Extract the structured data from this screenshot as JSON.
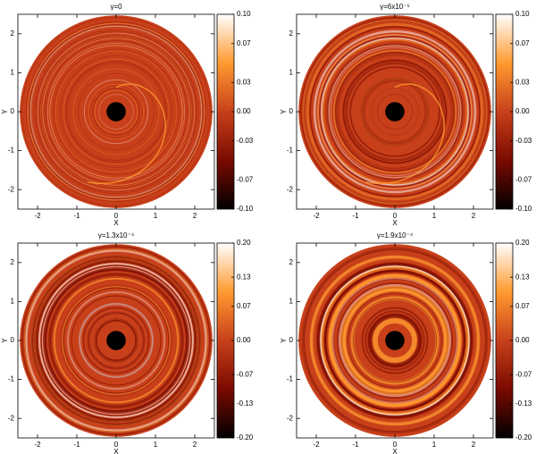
{
  "chart_data": [
    {
      "type": "heatmap",
      "title": "γ=0",
      "xlabel": "X",
      "ylabel": "Y",
      "xlim": [
        -2.5,
        2.5
      ],
      "ylim": [
        -2.5,
        2.5
      ],
      "xticks": [
        -2,
        -1,
        0,
        1,
        2
      ],
      "yticks": [
        -2,
        -1,
        0,
        1,
        2
      ],
      "colorbar_lim": [
        -0.1,
        0.1
      ],
      "colorbar_ticks": [
        {
          "value": 0.1,
          "label": "0.10"
        },
        0.07,
        0.03,
        {
          "value": 0,
          "label": "0.00"
        },
        -0.03,
        -0.07,
        {
          "value": -0.1,
          "label": "-0.10"
        }
      ],
      "colormap": [
        "#000000",
        "#7a0a00",
        "#c8401a",
        "#ff9a30",
        "#ffffff"
      ]
    },
    {
      "type": "heatmap",
      "title": "γ=6x10⁻⁵",
      "xlabel": "X",
      "ylabel": "Y",
      "xlim": [
        -2.5,
        2.5
      ],
      "ylim": [
        -2.5,
        2.5
      ],
      "xticks": [
        -2,
        -1,
        0,
        1,
        2
      ],
      "yticks": [
        -2,
        -1,
        0,
        1,
        2
      ],
      "colorbar_lim": [
        -0.1,
        0.1
      ],
      "colorbar_ticks": [
        {
          "value": 0.1,
          "label": "0.10"
        },
        0.07,
        0.03,
        {
          "value": 0,
          "label": "0.00"
        },
        -0.03,
        -0.07,
        {
          "value": -0.1,
          "label": "-0.10"
        }
      ],
      "colormap": [
        "#000000",
        "#7a0a00",
        "#c8401a",
        "#ff9a30",
        "#ffffff"
      ]
    },
    {
      "type": "heatmap",
      "title": "γ=1.3x10⁻⁴",
      "xlabel": "X",
      "ylabel": "Y",
      "xlim": [
        -2.5,
        2.5
      ],
      "ylim": [
        -2.5,
        2.5
      ],
      "xticks": [
        -2,
        -1,
        0,
        1,
        2
      ],
      "yticks": [
        -2,
        -1,
        0,
        1,
        2
      ],
      "colorbar_lim": [
        -0.2,
        0.2
      ],
      "colorbar_ticks": [
        {
          "value": 0.2,
          "label": "0.20"
        },
        0.13,
        0.07,
        {
          "value": 0,
          "label": "0.00"
        },
        -0.07,
        -0.13,
        {
          "value": -0.2,
          "label": "-0.20"
        }
      ],
      "colormap": [
        "#000000",
        "#7a0a00",
        "#c8401a",
        "#ff9a30",
        "#ffffff"
      ]
    },
    {
      "type": "heatmap",
      "title": "γ=1.9x10⁻⁴",
      "xlabel": "X",
      "ylabel": "Y",
      "xlim": [
        -2.5,
        2.5
      ],
      "ylim": [
        -2.5,
        2.5
      ],
      "xticks": [
        -2,
        -1,
        0,
        1,
        2
      ],
      "yticks": [
        -2,
        -1,
        0,
        1,
        2
      ],
      "colorbar_lim": [
        -0.2,
        0.2
      ],
      "colorbar_ticks": [
        {
          "value": 0.2,
          "label": "0.20"
        },
        0.13,
        0.07,
        {
          "value": 0,
          "label": "0.00"
        },
        -0.07,
        -0.13,
        {
          "value": -0.2,
          "label": "-0.20"
        }
      ],
      "colormap": [
        "#000000",
        "#7a0a00",
        "#c8401a",
        "#ff9a30",
        "#ffffff"
      ]
    }
  ]
}
